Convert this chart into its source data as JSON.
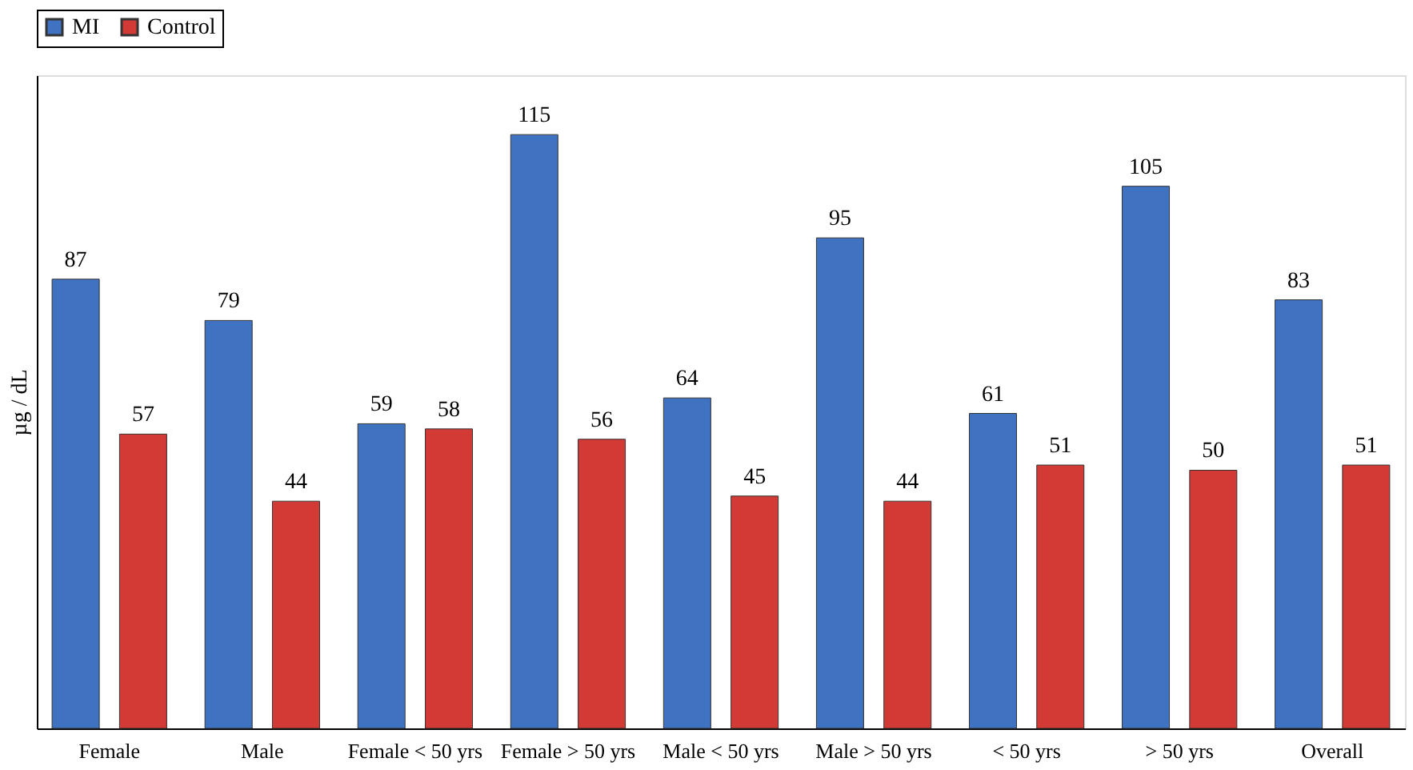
{
  "chart_data": {
    "type": "bar",
    "data_labels": true,
    "tick_labels": "x",
    "ylabel": "µg / dL",
    "legend": "top",
    "grid": false,
    "categories": [
      "Female",
      "Male",
      "Female < 50 yrs",
      "Female > 50 yrs",
      "Male < 50 yrs",
      "Male > 50 yrs",
      "< 50 yrs",
      "> 50 yrs",
      "Overall"
    ],
    "series": [
      {
        "name": "MI",
        "color": "#3f72c0",
        "values": [
          87,
          79,
          59,
          115,
          64,
          95,
          61,
          105,
          83
        ]
      },
      {
        "name": "Control",
        "color": "#d23a36",
        "values": [
          57,
          44,
          58,
          56,
          45,
          44,
          51,
          50,
          51
        ]
      }
    ]
  }
}
